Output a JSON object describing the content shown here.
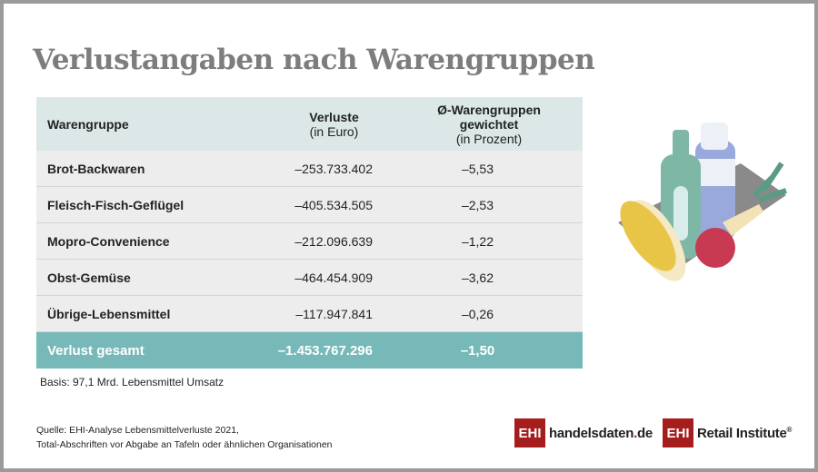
{
  "title": "Verlustangaben nach Warengruppen",
  "table": {
    "headers": {
      "col1": "Warengruppe",
      "col2_line1": "Verluste",
      "col2_line2": "(in Euro)",
      "col3_line1": "Ø-Warengruppen",
      "col3_line2": "gewichtet",
      "col3_line3": "(in Prozent)"
    },
    "rows": [
      {
        "name": "Brot-Backwaren",
        "loss": "–253.733.402",
        "pct": "–5,53"
      },
      {
        "name": "Fleisch-Fisch-Geflügel",
        "loss": "–405.534.505",
        "pct": "–2,53"
      },
      {
        "name": "Mopro-Convenience",
        "loss": "–212.096.639",
        "pct": "–1,22"
      },
      {
        "name": "Obst-Gemüse",
        "loss": "–464.454.909",
        "pct": "–3,62"
      },
      {
        "name": "Übrige-Lebensmittel",
        "loss": "–117.947.841",
        "pct": "–0,26"
      }
    ],
    "total": {
      "name": "Verlust gesamt",
      "loss": "–1.453.767.296",
      "pct": "–1,50"
    }
  },
  "basis": "Basis: 97,1 Mrd. Lebensmittel Umsatz",
  "source_line1": "Quelle: EHI-Analyse Lebensmittelverluste 2021,",
  "source_line2": "Total-Abschriften vor Abgabe an Tafeln oder ähnlichen Organisationen",
  "logos": {
    "ehi": "EHI",
    "handelsdaten_a": "handelsdaten",
    "handelsdaten_dot": ".",
    "handelsdaten_b": "de",
    "retail": "Retail Institute",
    "reg": "®"
  },
  "colors": {
    "header_bg": "#dbe8e7",
    "row_bg": "#ededed",
    "total_bg": "#76b9b8",
    "brand_red": "#a61d1d"
  }
}
